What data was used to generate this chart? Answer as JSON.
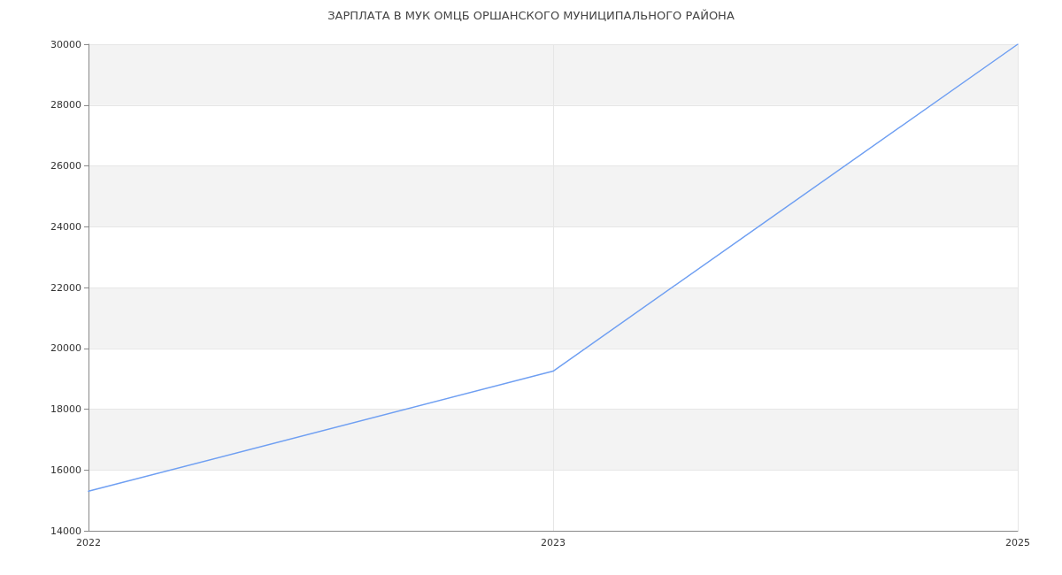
{
  "chart_data": {
    "type": "line",
    "title": "ЗАРПЛАТА В МУК ОМЦБ ОРШАНСКОГО МУНИЦИПАЛЬНОГО РАЙОНА",
    "categories": [
      "2022",
      "2023",
      "2025"
    ],
    "values": [
      15300,
      19250,
      30000
    ],
    "color": "#6f9ff2",
    "ylim": [
      14000,
      30000
    ],
    "yticks": [
      14000,
      16000,
      18000,
      20000,
      22000,
      24000,
      26000,
      28000,
      30000
    ],
    "grid": true,
    "marker": "none"
  }
}
